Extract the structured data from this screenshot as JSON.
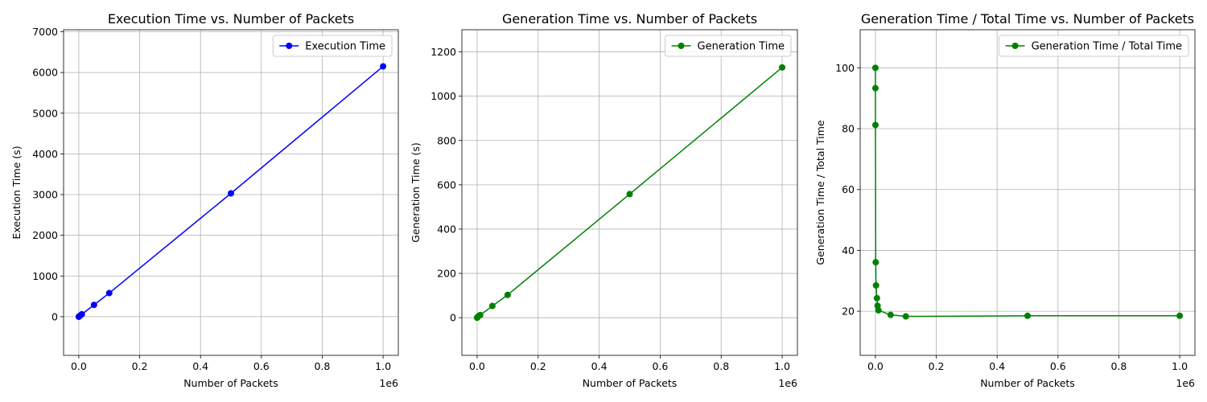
{
  "chart_data": [
    {
      "type": "line",
      "title": "Execution Time vs. Number of Packets",
      "xlabel": "Number of Packets",
      "ylabel": "Execution Time (s)",
      "x_offset_label": "1e6",
      "xlim": [
        -50000,
        1050000
      ],
      "ylim": [
        -950,
        7050
      ],
      "xticks": [
        0,
        200000,
        400000,
        600000,
        800000,
        1000000
      ],
      "xtick_labels": [
        "0.0",
        "0.2",
        "0.4",
        "0.6",
        "0.8",
        "1.0"
      ],
      "yticks": [
        0,
        1000,
        2000,
        3000,
        4000,
        5000,
        6000,
        7000
      ],
      "ytick_labels": [
        "0",
        "1000",
        "2000",
        "3000",
        "4000",
        "5000",
        "6000",
        "7000"
      ],
      "grid": true,
      "legend_position": "top-right",
      "series": [
        {
          "name": "Execution Time",
          "color": "#0000ff",
          "marker": "circle",
          "x": [
            10,
            100,
            1000,
            5000,
            10000,
            50000,
            100000,
            500000,
            1000000
          ],
          "y": [
            0.1,
            0.6,
            6,
            30,
            60,
            290,
            580,
            3030,
            6150
          ]
        }
      ]
    },
    {
      "type": "line",
      "title": "Generation Time vs. Number of Packets",
      "xlabel": "Number of Packets",
      "ylabel": "Generation Time (s)",
      "x_offset_label": "1e6",
      "xlim": [
        -50000,
        1050000
      ],
      "ylim": [
        -170,
        1300
      ],
      "xticks": [
        0,
        200000,
        400000,
        600000,
        800000,
        1000000
      ],
      "xtick_labels": [
        "0.0",
        "0.2",
        "0.4",
        "0.6",
        "0.8",
        "1.0"
      ],
      "yticks": [
        0,
        200,
        400,
        600,
        800,
        1000,
        1200
      ],
      "ytick_labels": [
        "0",
        "200",
        "400",
        "600",
        "800",
        "1000",
        "1200"
      ],
      "grid": true,
      "legend_position": "top-right",
      "series": [
        {
          "name": "Generation Time",
          "color": "#008000",
          "marker": "circle",
          "x": [
            10,
            100,
            1000,
            5000,
            10000,
            50000,
            100000,
            500000,
            1000000
          ],
          "y": [
            0.1,
            0.5,
            2,
            8,
            12,
            53,
            103,
            558,
            1130
          ]
        }
      ]
    },
    {
      "type": "line",
      "title": "Generation Time / Total Time vs. Number of Packets",
      "xlabel": "Number of Packets",
      "ylabel": "Generation Time / Total Time",
      "x_offset_label": "1e6",
      "xlim": [
        -50000,
        1050000
      ],
      "ylim": [
        5.5,
        112.5
      ],
      "xticks": [
        0,
        200000,
        400000,
        600000,
        800000,
        1000000
      ],
      "xtick_labels": [
        "0.0",
        "0.2",
        "0.4",
        "0.6",
        "0.8",
        "1.0"
      ],
      "yticks": [
        20,
        40,
        60,
        80,
        100
      ],
      "ytick_labels": [
        "20",
        "40",
        "60",
        "80",
        "100"
      ],
      "grid": true,
      "legend_position": "top-right",
      "series": [
        {
          "name": "Generation Time / Total Time",
          "color": "#008000",
          "marker": "circle",
          "x": [
            1,
            10,
            100,
            1000,
            2000,
            5000,
            7000,
            10000,
            50000,
            100000,
            500000,
            1000000
          ],
          "y": [
            100,
            93.3,
            81.2,
            36.1,
            28.5,
            24.3,
            21.8,
            20.3,
            18.8,
            18.3,
            18.5,
            18.5
          ]
        }
      ]
    }
  ]
}
